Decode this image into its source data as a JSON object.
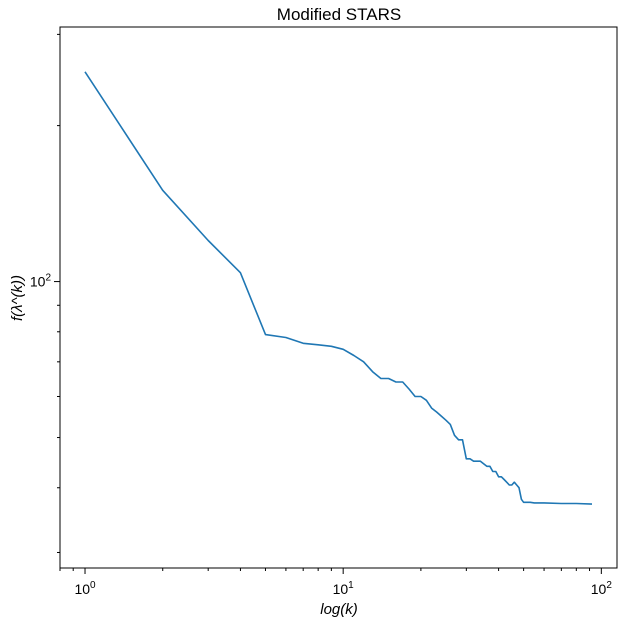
{
  "chart_data": {
    "type": "line",
    "title": "Modified STARS",
    "xlabel": "log(k)",
    "ylabel": "f(λ^(k))",
    "xscale": "log",
    "yscale": "log",
    "xlim": [
      0.8,
      115
    ],
    "ylim": [
      28,
      310
    ],
    "grid": false,
    "x_major_ticks": [
      1,
      10,
      100
    ],
    "x_tick_labels": [
      {
        "base": "10",
        "exp": "0"
      },
      {
        "base": "10",
        "exp": "1"
      },
      {
        "base": "10",
        "exp": "2"
      }
    ],
    "y_major_ticks": [
      100
    ],
    "y_tick_labels": [
      {
        "base": "10",
        "exp": "2"
      }
    ],
    "series": [
      {
        "color": "#1f77b4",
        "x": [
          1,
          2,
          3,
          4,
          5,
          6,
          7,
          8,
          9,
          10,
          11,
          12,
          13,
          14,
          15,
          16,
          17,
          18,
          19,
          20,
          21,
          22,
          23,
          24,
          25,
          26,
          27,
          28,
          29,
          30,
          31,
          32,
          33,
          34,
          35,
          36,
          37,
          38,
          39,
          40,
          41,
          42,
          43,
          44,
          45,
          46,
          47,
          48,
          49,
          50,
          51,
          52,
          53,
          55,
          60,
          70,
          80,
          92
        ],
        "y": [
          254,
          150,
          120,
          104,
          79,
          78,
          76,
          75.5,
          75,
          74,
          72,
          70,
          67,
          65,
          65,
          64,
          64,
          62,
          60,
          60,
          59,
          57,
          56,
          55,
          54,
          53,
          50.5,
          49.5,
          49.5,
          45.5,
          45.5,
          45,
          45,
          45,
          44.5,
          44,
          44,
          43,
          43,
          42,
          42,
          41.5,
          41,
          40.5,
          40.5,
          41,
          40.5,
          40,
          38,
          37.5,
          37.5,
          37.5,
          37.5,
          37.4,
          37.4,
          37.3,
          37.3,
          37.2
        ]
      }
    ]
  }
}
